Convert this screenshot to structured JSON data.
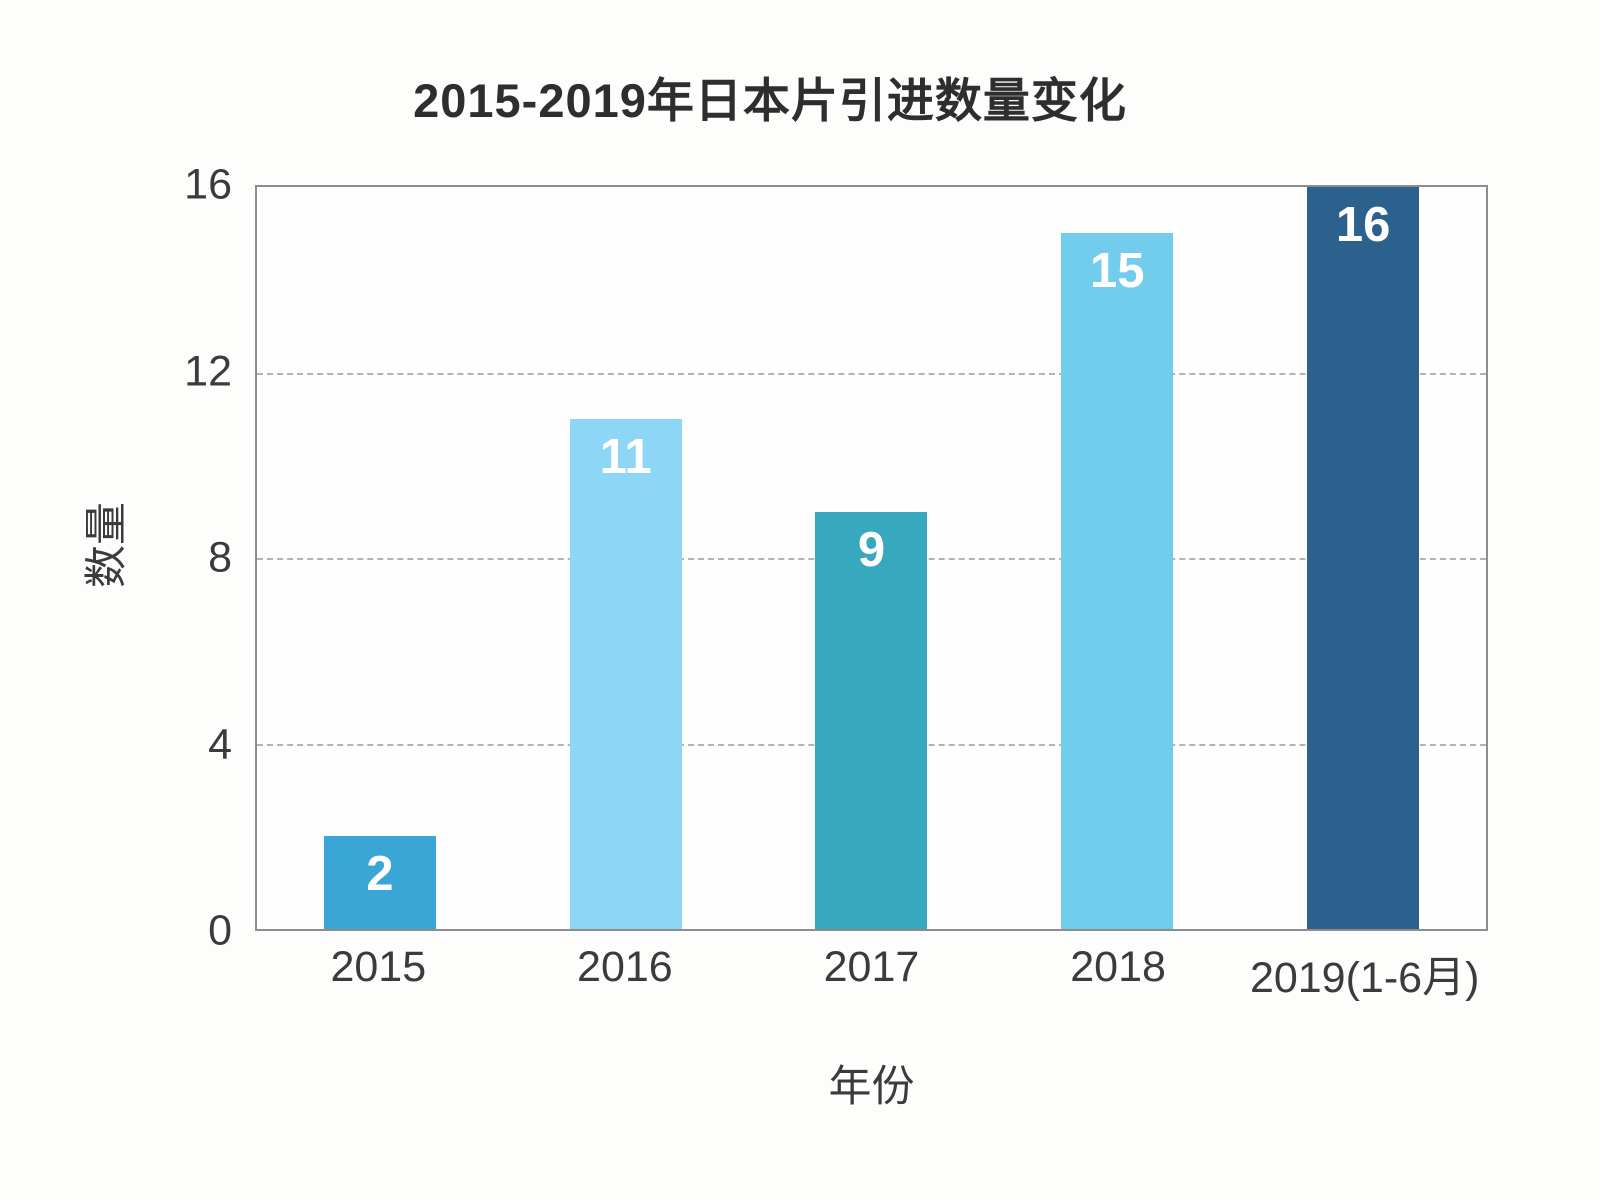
{
  "title": "2015-2019年日本片引进数量变化",
  "chart_data": {
    "type": "bar",
    "title": "2015-2019年日本片引进数量变化",
    "categories": [
      "2015",
      "2016",
      "2017",
      "2018",
      "2019(1-6月)"
    ],
    "values": [
      2,
      11,
      9,
      15,
      16
    ],
    "bar_colors": [
      "#3AA6D6",
      "#8ED6F6",
      "#37A9BE",
      "#72CCEB",
      "#2C618E"
    ],
    "value_label_color": "#ffffff",
    "xlabel": "年份",
    "ylabel": "数量",
    "ylim": [
      0,
      16
    ],
    "yticks": [
      0,
      4,
      8,
      12,
      16
    ],
    "grid": "horizontal dashed at interior ticks (4, 8, 12)",
    "legend": "none",
    "plot_border": "solid gray on all four sides"
  },
  "colors": {
    "background": "#fdfdfc",
    "plot_border": "#8d8d8d",
    "gridline": "#b3b3b3",
    "axis_text": "#3b3b3b",
    "title_text": "#2e2e2e"
  }
}
